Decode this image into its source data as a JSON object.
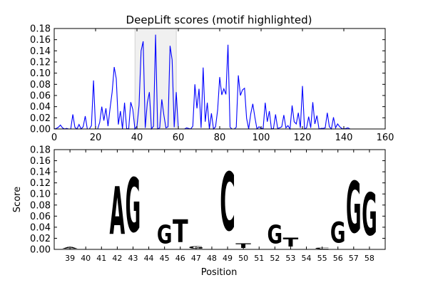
{
  "chart_data": [
    {
      "type": "line",
      "title": "DeepLift scores (motif highlighted)",
      "xlabel": "",
      "ylabel": "",
      "xlim": [
        0,
        160
      ],
      "ylim": [
        0,
        0.18
      ],
      "xticks": [
        0,
        20,
        40,
        60,
        80,
        100,
        120,
        140,
        160
      ],
      "yticks": [
        0.0,
        0.02,
        0.04,
        0.06,
        0.08,
        0.1,
        0.12,
        0.14,
        0.16,
        0.18
      ],
      "highlight": [
        39,
        59
      ],
      "line_color": "#0000ff",
      "highlight_color": "#f0f0f0",
      "grid": false,
      "legend": "none",
      "series": [
        {
          "x": [
            0,
            1,
            2,
            3,
            4,
            5,
            6,
            7,
            8,
            9,
            10,
            11,
            12,
            13,
            14,
            15,
            16,
            17,
            18,
            19,
            20,
            21,
            22,
            23,
            24,
            25,
            26,
            27,
            28,
            29,
            30,
            31,
            32,
            33,
            34,
            35,
            36,
            37,
            38,
            39,
            40,
            41,
            42,
            43,
            44,
            45,
            46,
            47,
            48,
            49,
            50,
            51,
            52,
            53,
            54,
            55,
            56,
            57,
            58,
            59,
            60,
            61,
            62,
            63,
            64,
            65,
            66,
            67,
            68,
            69,
            70,
            71,
            72,
            73,
            74,
            75,
            76,
            77,
            78,
            79,
            80,
            81,
            82,
            83,
            84,
            85,
            86,
            87,
            88,
            89,
            90,
            91,
            92,
            93,
            94,
            95,
            96,
            97,
            98,
            99,
            100,
            101,
            102,
            103,
            104,
            105,
            106,
            107,
            108,
            109,
            110,
            111,
            112,
            113,
            114,
            115,
            116,
            117,
            118,
            119,
            120,
            121,
            122,
            123,
            124,
            125,
            126,
            127,
            128,
            129,
            130,
            131,
            132,
            133,
            134,
            135,
            136,
            137,
            138,
            139,
            140,
            141,
            142,
            143,
            144,
            145
          ],
          "y": [
            0,
            0.001,
            0.003,
            0.007,
            0.002,
            0,
            0.001,
            0,
            0,
            0.026,
            0.003,
            0,
            0.008,
            0,
            0.004,
            0.023,
            0,
            0,
            0.006,
            0.087,
            0,
            0,
            0.012,
            0.04,
            0.015,
            0.037,
            0.005,
            0.037,
            0.066,
            0.111,
            0.09,
            0.008,
            0.032,
            0,
            0.047,
            0.001,
            0,
            0.048,
            0.035,
            0,
            0.005,
            0.042,
            0.14,
            0.157,
            0.002,
            0.047,
            0.066,
            0,
            0.005,
            0.169,
            0,
            0.002,
            0.053,
            0.025,
            0.002,
            0.004,
            0.149,
            0.124,
            0.003,
            0.066,
            0,
            0,
            0,
            0,
            0.002,
            0.001,
            0,
            0.005,
            0.08,
            0.037,
            0.072,
            0.002,
            0.11,
            0.013,
            0.047,
            0,
            0.028,
            0,
            0.004,
            0.034,
            0.093,
            0.061,
            0.072,
            0.062,
            0.151,
            0.003,
            0,
            0,
            0.003,
            0.096,
            0.06,
            0.07,
            0.073,
            0.019,
            0,
            0.027,
            0.045,
            0.021,
            0,
            0.004,
            0.001,
            0.001,
            0.047,
            0.013,
            0.032,
            0,
            0.001,
            0.026,
            0.001,
            0.002,
            0.004,
            0.025,
            0.002,
            0.006,
            0,
            0.042,
            0.013,
            0.009,
            0.029,
            0.002,
            0.077,
            0,
            0.002,
            0.022,
            0.002,
            0.048,
            0.009,
            0.024,
            0,
            0.001,
            0.001,
            0.002,
            0.029,
            0.004,
            0,
            0.021,
            0.002,
            0.009,
            0.004,
            0.001,
            0,
            0.001,
            0.002,
            0,
            0,
            0
          ]
        }
      ]
    },
    {
      "type": "sequence-logo",
      "title": "",
      "xlabel": "Position",
      "ylabel": "Score",
      "xlim": [
        38,
        59
      ],
      "ylim": [
        0,
        0.18
      ],
      "yticks": [
        0.0,
        0.02,
        0.04,
        0.06,
        0.08,
        0.1,
        0.12,
        0.14,
        0.16,
        0.18
      ],
      "categories": [
        "39",
        "40",
        "41",
        "42",
        "43",
        "44",
        "45",
        "46",
        "47",
        "48",
        "49",
        "50",
        "51",
        "52",
        "53",
        "54",
        "55",
        "56",
        "57",
        "58"
      ],
      "letters": [
        "A",
        "G",
        "A",
        "A",
        "G",
        "G",
        "G",
        "T",
        "G",
        "T",
        "C",
        "T",
        "T",
        "G",
        "T",
        "T",
        "C",
        "G",
        "G",
        "G"
      ],
      "values": [
        0.005,
        0.0,
        0.0,
        0.138,
        0.157,
        0.0,
        0.053,
        0.065,
        0.007,
        0.0,
        0.169,
        0.013,
        0.0,
        0.053,
        0.025,
        0.0,
        0.004,
        0.06,
        0.149,
        0.124
      ],
      "grid": false,
      "legend": "none",
      "colors": {
        "A": "#008000",
        "C": "#0000ff",
        "G": "#ffa500",
        "T": "#ff0000"
      }
    }
  ]
}
